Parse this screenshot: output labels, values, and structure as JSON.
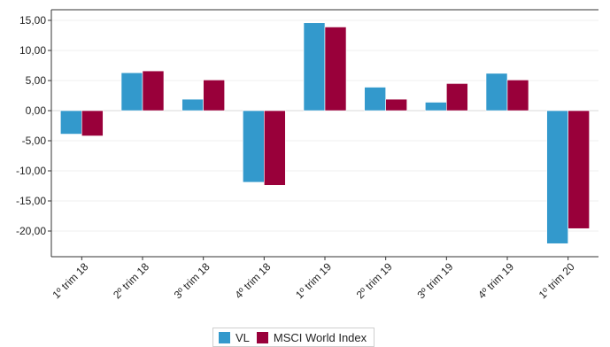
{
  "chart_data": {
    "type": "bar",
    "categories": [
      "1º trim  18",
      "2º trim  18",
      "3º trim  18",
      "4º trim  18",
      "1º trim  19",
      "2º trim  19",
      "3º trim  19",
      "4º trim  19",
      "1º trim  20"
    ],
    "series": [
      {
        "name": "VL",
        "color": "#3399cc",
        "values": [
          -3.9,
          6.3,
          1.9,
          -11.9,
          14.6,
          3.9,
          1.4,
          6.2,
          -22.1
        ]
      },
      {
        "name": "MSCI World Index",
        "color": "#99003a",
        "values": [
          -4.2,
          6.6,
          5.1,
          -12.4,
          13.9,
          1.9,
          4.5,
          5.1,
          -19.6
        ]
      }
    ],
    "yticks": [
      "15,00",
      "10,00",
      "5,00",
      "0,00",
      "-5,00",
      "-10,00",
      "-15,00",
      "-20,00"
    ],
    "ylim": [
      -24,
      16.5
    ],
    "grid": true,
    "legend_position": "bottom-center"
  }
}
